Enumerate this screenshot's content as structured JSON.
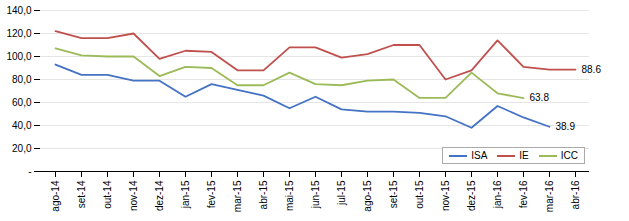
{
  "chart_data": {
    "type": "line",
    "categories": [
      "ago-14",
      "set-14",
      "out-14",
      "nov-14",
      "dez-14",
      "jan-15",
      "fev-15",
      "mar-15",
      "abr-15",
      "mai-15",
      "jun-15",
      "jul-15",
      "ago-15",
      "set-15",
      "out-15",
      "nov-15",
      "dez-15",
      "jan-16",
      "fev-16",
      "mar-16",
      "abr-16"
    ],
    "series": [
      {
        "name": "ISA",
        "color": "#4472C4",
        "values": [
          93,
          84,
          84,
          79,
          79,
          65,
          76,
          71,
          66,
          55,
          65,
          54,
          52,
          52,
          51,
          48,
          38,
          57,
          47,
          38.9,
          null
        ]
      },
      {
        "name": "IE",
        "color": "#C0504D",
        "values": [
          122,
          116,
          116,
          120,
          98,
          105,
          104,
          88,
          88,
          108,
          108,
          99,
          102,
          110,
          110,
          80,
          88,
          114,
          91,
          88.6,
          88.6
        ]
      },
      {
        "name": "ICC",
        "color": "#9BBB59",
        "values": [
          107,
          101,
          100,
          100,
          83,
          91,
          90,
          75,
          75,
          86,
          76,
          75,
          79,
          80,
          64,
          64,
          86,
          68,
          63.8,
          null,
          null
        ]
      }
    ],
    "ylim": [
      0,
      140
    ],
    "yticks": [
      {
        "value": 0,
        "label": "-"
      },
      {
        "value": 20,
        "label": "20,0"
      },
      {
        "value": 40,
        "label": "40,0"
      },
      {
        "value": 60,
        "label": "60,0"
      },
      {
        "value": 80,
        "label": "80,0"
      },
      {
        "value": 100,
        "label": "100,0"
      },
      {
        "value": 120,
        "label": "120,0"
      },
      {
        "value": 140,
        "label": "140,0"
      }
    ],
    "grid": true,
    "legend": "lower right",
    "annotations": [
      {
        "text": "88.6",
        "x": "abr-16",
        "y": 88.6
      },
      {
        "text": "63.8",
        "x": "fev-16",
        "y": 63.8
      },
      {
        "text": "38.9",
        "x": "mar-16",
        "y": 38.9
      }
    ]
  }
}
